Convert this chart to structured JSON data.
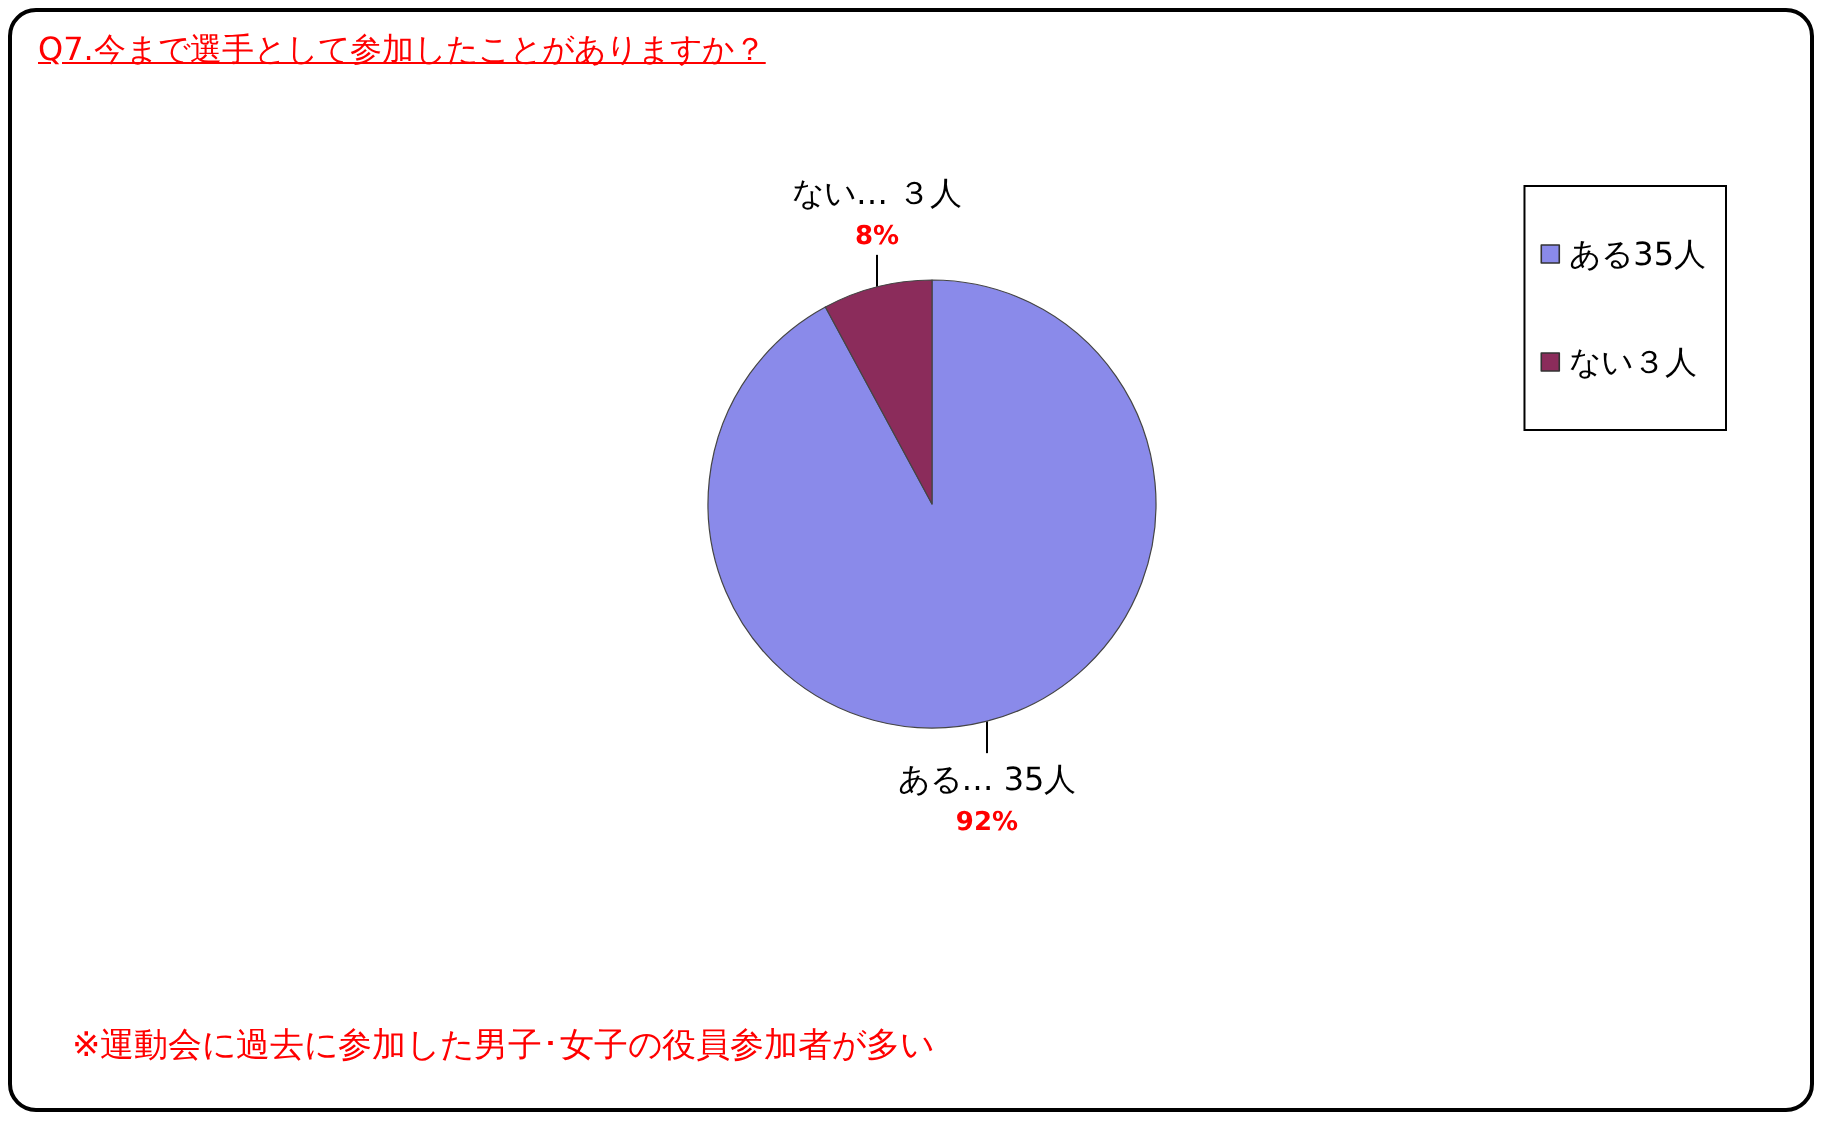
{
  "chart_data": {
    "type": "pie",
    "title": "Q7.今まで選手として参加したことがありますか？",
    "categories": [
      "ある35人",
      "ない３人"
    ],
    "values": [
      35,
      3
    ],
    "colors": [
      "#8a8aea",
      "#8b2c5b"
    ],
    "value_labels": [
      "ある… 35人\n92%",
      "ない… ３人\n8%"
    ],
    "legend": "right",
    "annotations": [
      "※運動会に過去に参加した男子･女子の役員参加者が多い"
    ]
  }
}
